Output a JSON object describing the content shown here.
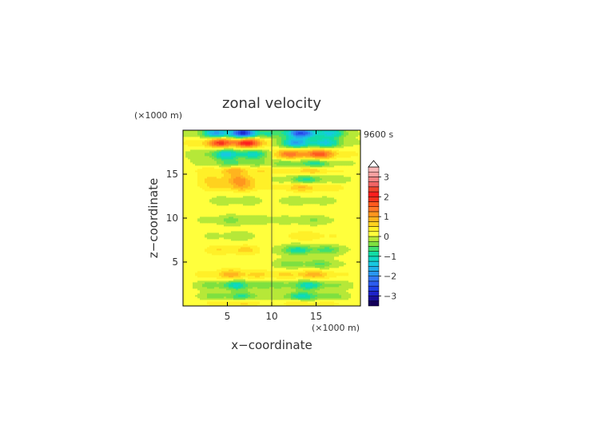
{
  "chart_data": {
    "type": "heatmap",
    "title": "zonal velocity",
    "xlabel": "x−coordinate",
    "ylabel": "z−coordinate",
    "x_unit": "(×1000 m)",
    "y_unit": "(×1000 m)",
    "time_label": "9600 s",
    "xlim": [
      0,
      20
    ],
    "ylim": [
      0,
      20
    ],
    "x_ticks": [
      5,
      10,
      15
    ],
    "y_ticks": [
      5,
      10,
      15
    ],
    "colorbar": {
      "ticks": [
        3,
        2,
        1,
        0,
        -1,
        -2,
        -3
      ],
      "levels": [
        -3.5,
        -3.25,
        -3,
        -2.75,
        -2.5,
        -2.25,
        -2,
        -1.75,
        -1.5,
        -1.25,
        -1,
        -0.75,
        -0.5,
        -0.25,
        0,
        0.25,
        0.5,
        0.75,
        1,
        1.25,
        1.5,
        1.75,
        2,
        2.25,
        2.5,
        2.75,
        3,
        3.25,
        3.5
      ],
      "colors": [
        "#14005a",
        "#1a0f9a",
        "#1e22c8",
        "#2040e6",
        "#2c5cf0",
        "#3478f4",
        "#2a96f0",
        "#22b0ea",
        "#18c8e0",
        "#10d6c4",
        "#12dca6",
        "#40e070",
        "#7ee040",
        "#b6e838",
        "#ffff3c",
        "#fff028",
        "#ffd21e",
        "#ffb41e",
        "#ff961e",
        "#ff7828",
        "#ff5a1e",
        "#f8321e",
        "#ff1e1e",
        "#f0462e",
        "#f06464",
        "#f48484",
        "#f8a0a0",
        "#fab8b8"
      ]
    },
    "bands_z": [
      {
        "z": 0.6,
        "w1": 1,
        "w2": 1
      },
      {
        "z": 1.0,
        "w1": -1.4,
        "w2": -1.7
      },
      {
        "z": 2.4,
        "w1": -1.2,
        "w2": -1.2
      },
      {
        "z": 3.6,
        "w1": 0.9,
        "w2": 0.9
      },
      {
        "z": 4.8,
        "w1": 0.1,
        "w2": -0.8
      },
      {
        "z": 6.4,
        "w1": 0.6,
        "w2": -1.2
      },
      {
        "z": 8.0,
        "w1": -0.3,
        "w2": 0.4
      },
      {
        "z": 9.8,
        "w1": -0.5,
        "w2": -0.4
      },
      {
        "z": 12.0,
        "w1": -0.3,
        "w2": -0.3
      },
      {
        "z": 13.6,
        "w1": 0.8,
        "w2": 0.8
      },
      {
        "z": 14.4,
        "w1": 1.0,
        "w2": -1.0
      },
      {
        "z": 15.5,
        "w1": 1.0,
        "w2": 0.8
      },
      {
        "z": 16.2,
        "w1": -0.9,
        "w2": -1.2
      },
      {
        "z": 17.3,
        "w1": -1.8,
        "w2": 2.0
      },
      {
        "z": 18.6,
        "w1": 2.5,
        "w2": -2.2
      },
      {
        "z": 19.7,
        "w1": -3.2,
        "w2": -2.8
      }
    ]
  }
}
